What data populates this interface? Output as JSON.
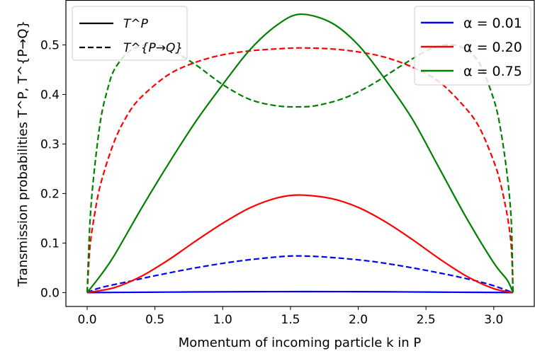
{
  "chart_data": {
    "type": "line",
    "title": "",
    "xlabel": "Momentum of incoming particle k in P",
    "ylabel": "Transmission probabilities T^P, T^{P→Q}",
    "xlim": [
      -0.157,
      3.299
    ],
    "ylim": [
      -0.028,
      0.59
    ],
    "xticks": [
      0.0,
      0.5,
      1.0,
      1.5,
      2.0,
      2.5,
      3.0
    ],
    "xtick_labels": [
      "0.0",
      "0.5",
      "1.0",
      "1.5",
      "2.0",
      "2.5",
      "3.0"
    ],
    "yticks": [
      0.0,
      0.1,
      0.2,
      0.3,
      0.4,
      0.5
    ],
    "ytick_labels": [
      "0.0",
      "0.1",
      "0.2",
      "0.3",
      "0.4",
      "0.5"
    ],
    "grid": false,
    "style_legend": {
      "placement": "top-left",
      "entries": [
        {
          "label": "T^P",
          "linestyle": "solid"
        },
        {
          "label": "T^{P→Q}",
          "linestyle": "dashed"
        }
      ]
    },
    "alpha_legend": {
      "placement": "top-right",
      "entries": [
        {
          "label": "α = 0.01",
          "color": "#0000ff"
        },
        {
          "label": "α = 0.20",
          "color": "#ff0000"
        },
        {
          "label": "α = 0.75",
          "color": "#008000"
        }
      ]
    },
    "series": [
      {
        "alpha": "0.01",
        "color": "#0000ff",
        "linestyle": "solid",
        "label": "T^P",
        "x": [
          0.0,
          0.3,
          0.6,
          0.9,
          1.2,
          1.5708,
          1.9,
          2.2,
          2.5,
          2.8,
          3.1416
        ],
        "y": [
          0.0,
          0.0005,
          0.001,
          0.0015,
          0.0018,
          0.002,
          0.0019,
          0.0016,
          0.0011,
          0.0006,
          0.0
        ]
      },
      {
        "alpha": "0.01",
        "color": "#0000ff",
        "linestyle": "dashed",
        "label": "T^{P→Q}",
        "x": [
          0.0,
          0.1,
          0.3,
          0.5,
          0.8,
          1.1,
          1.4,
          1.5708,
          1.8,
          2.1,
          2.4,
          2.7,
          2.95,
          3.1416
        ],
        "y": [
          0.0,
          0.01,
          0.022,
          0.034,
          0.05,
          0.063,
          0.072,
          0.074,
          0.071,
          0.063,
          0.05,
          0.034,
          0.018,
          0.0
        ]
      },
      {
        "alpha": "0.20",
        "color": "#ff0000",
        "linestyle": "solid",
        "label": "T^P",
        "x": [
          0.0,
          0.2,
          0.4,
          0.6,
          0.8,
          1.0,
          1.2,
          1.4,
          1.5708,
          1.8,
          2.0,
          2.2,
          2.4,
          2.6,
          2.8,
          3.0,
          3.1416
        ],
        "y": [
          0.0,
          0.01,
          0.033,
          0.066,
          0.104,
          0.14,
          0.171,
          0.191,
          0.197,
          0.19,
          0.172,
          0.143,
          0.107,
          0.068,
          0.033,
          0.008,
          0.0
        ]
      },
      {
        "alpha": "0.20",
        "color": "#ff0000",
        "linestyle": "dashed",
        "label": "T^{P→Q}",
        "x": [
          0.0,
          0.02,
          0.05,
          0.1,
          0.2,
          0.3,
          0.4,
          0.6,
          0.8,
          1.0,
          1.2,
          1.4,
          1.5708,
          1.8,
          2.0,
          2.2,
          2.4,
          2.6,
          2.8,
          2.9,
          3.0,
          3.05,
          3.1,
          3.13,
          3.1416
        ],
        "y": [
          0.0,
          0.09,
          0.15,
          0.22,
          0.305,
          0.36,
          0.395,
          0.44,
          0.465,
          0.48,
          0.488,
          0.492,
          0.494,
          0.492,
          0.486,
          0.475,
          0.455,
          0.425,
          0.37,
          0.33,
          0.265,
          0.22,
          0.155,
          0.09,
          0.0
        ]
      },
      {
        "alpha": "0.75",
        "color": "#008000",
        "linestyle": "solid",
        "label": "T^P",
        "x": [
          0.0,
          0.1,
          0.2,
          0.4,
          0.6,
          0.8,
          1.0,
          1.2,
          1.4,
          1.5708,
          1.8,
          2.0,
          2.2,
          2.4,
          2.6,
          2.8,
          3.0,
          3.1,
          3.1416
        ],
        "y": [
          0.0,
          0.035,
          0.075,
          0.17,
          0.26,
          0.345,
          0.42,
          0.49,
          0.54,
          0.562,
          0.545,
          0.5,
          0.43,
          0.35,
          0.25,
          0.15,
          0.06,
          0.025,
          0.0
        ]
      },
      {
        "alpha": "0.75",
        "color": "#008000",
        "linestyle": "dashed",
        "label": "T^{P→Q}",
        "x": [
          0.0,
          0.02,
          0.05,
          0.1,
          0.15,
          0.2,
          0.3,
          0.4,
          0.5,
          0.6,
          0.8,
          1.0,
          1.2,
          1.4,
          1.5708,
          1.7,
          1.9,
          2.1,
          2.3,
          2.5,
          2.6,
          2.7,
          2.8,
          2.9,
          3.0,
          3.05,
          3.1,
          3.13,
          3.1416
        ],
        "y": [
          0.0,
          0.14,
          0.24,
          0.35,
          0.41,
          0.45,
          0.485,
          0.498,
          0.5,
          0.493,
          0.46,
          0.42,
          0.39,
          0.377,
          0.375,
          0.378,
          0.393,
          0.42,
          0.455,
          0.488,
          0.498,
          0.5,
          0.49,
          0.46,
          0.39,
          0.33,
          0.235,
          0.14,
          0.0
        ]
      }
    ]
  }
}
